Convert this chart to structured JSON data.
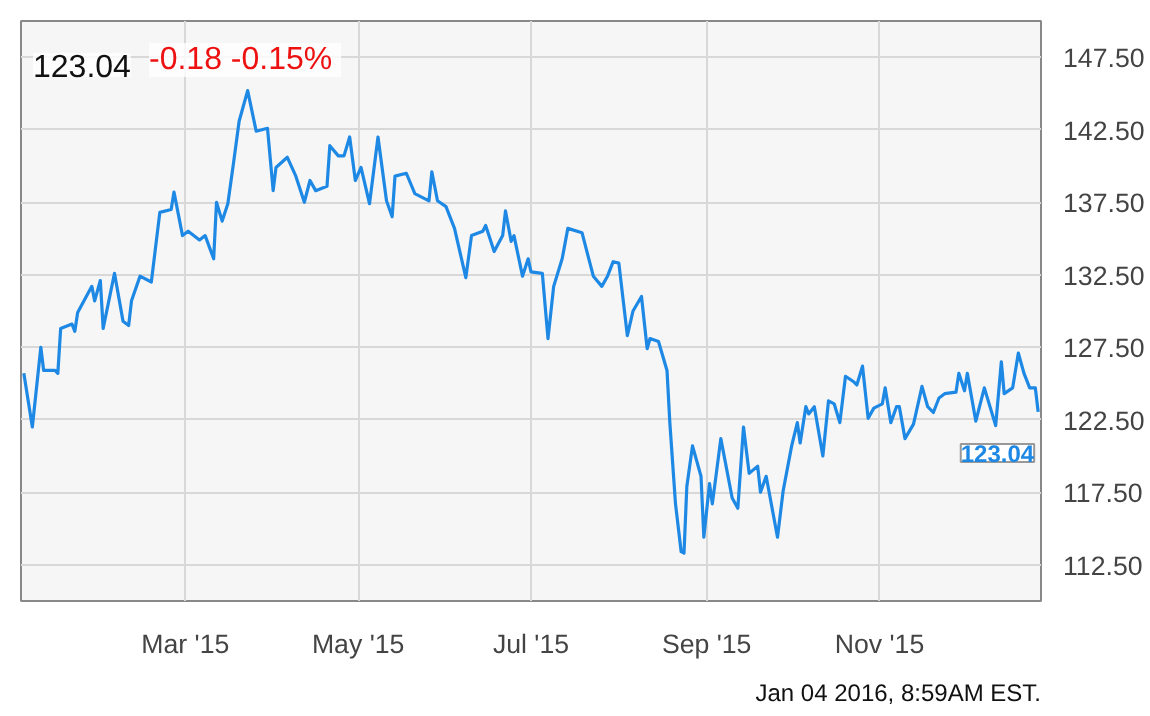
{
  "chart_data": {
    "type": "line",
    "title": "123.04",
    "subtitle": "-0.18  -0.15%",
    "x": [
      "2015-01-03",
      "2015-01-06",
      "2015-01-09",
      "2015-01-10",
      "2015-01-14",
      "2015-01-15",
      "2015-01-16",
      "2015-01-20",
      "2015-01-21",
      "2015-01-22",
      "2015-01-27",
      "2015-01-28",
      "2015-01-30",
      "2015-01-31",
      "2015-02-04",
      "2015-02-07",
      "2015-02-09",
      "2015-02-10",
      "2015-02-13",
      "2015-02-17",
      "2015-02-20",
      "2015-02-24",
      "2015-02-25",
      "2015-02-28",
      "2015-03-02",
      "2015-03-06",
      "2015-03-08",
      "2015-03-11",
      "2015-03-12",
      "2015-03-14",
      "2015-03-16",
      "2015-03-18",
      "2015-03-20",
      "2015-03-23",
      "2015-03-26",
      "2015-03-30",
      "2015-04-01",
      "2015-04-02",
      "2015-04-06",
      "2015-04-09",
      "2015-04-12",
      "2015-04-14",
      "2015-04-16",
      "2015-04-20",
      "2015-04-21",
      "2015-04-24",
      "2015-04-26",
      "2015-04-28",
      "2015-04-30",
      "2015-05-02",
      "2015-05-05",
      "2015-05-08",
      "2015-05-11",
      "2015-05-13",
      "2015-05-14",
      "2015-05-18",
      "2015-05-21",
      "2015-05-26",
      "2015-05-27",
      "2015-05-29",
      "2015-06-01",
      "2015-06-04",
      "2015-06-08",
      "2015-06-10",
      "2015-06-14",
      "2015-06-15",
      "2015-06-18",
      "2015-06-21",
      "2015-06-22",
      "2015-06-24",
      "2015-06-25",
      "2015-06-28",
      "2015-06-30",
      "2015-07-01",
      "2015-07-05",
      "2015-07-07",
      "2015-07-09",
      "2015-07-12",
      "2015-07-14",
      "2015-07-19",
      "2015-07-23",
      "2015-07-26",
      "2015-07-28",
      "2015-07-30",
      "2015-08-01",
      "2015-08-04",
      "2015-08-06",
      "2015-08-09",
      "2015-08-11",
      "2015-08-12",
      "2015-08-15",
      "2015-08-18",
      "2015-08-19",
      "2015-08-21",
      "2015-08-23",
      "2015-08-24",
      "2015-08-25",
      "2015-08-27",
      "2015-08-30",
      "2015-08-31",
      "2015-09-02",
      "2015-09-03",
      "2015-09-06",
      "2015-09-10",
      "2015-09-12",
      "2015-09-14",
      "2015-09-16",
      "2015-09-19",
      "2015-09-20",
      "2015-09-22",
      "2015-09-26",
      "2015-09-28",
      "2015-10-01",
      "2015-10-03",
      "2015-10-04",
      "2015-10-06",
      "2015-10-07",
      "2015-10-09",
      "2015-10-12",
      "2015-10-14",
      "2015-10-16",
      "2015-10-18",
      "2015-10-20",
      "2015-10-23",
      "2015-10-24",
      "2015-10-26",
      "2015-10-28",
      "2015-10-30",
      "2015-11-02",
      "2015-11-03",
      "2015-11-05",
      "2015-11-07",
      "2015-11-08",
      "2015-11-10",
      "2015-11-13",
      "2015-11-16",
      "2015-11-18",
      "2015-11-20",
      "2015-11-22",
      "2015-11-24",
      "2015-11-28",
      "2015-11-29",
      "2015-12-01",
      "2015-12-02",
      "2015-12-05",
      "2015-12-08",
      "2015-12-12",
      "2015-12-14",
      "2015-12-15",
      "2015-12-18",
      "2015-12-20",
      "2015-12-22",
      "2015-12-24",
      "2015-12-26",
      "2015-12-27"
    ],
    "series": [
      {
        "color": "#1e88e5",
        "values": [
          125.7,
          122.0,
          127.5,
          125.9,
          125.9,
          125.7,
          128.8,
          129.1,
          128.6,
          129.9,
          131.7,
          130.7,
          132.1,
          128.8,
          132.6,
          129.3,
          129.0,
          130.7,
          132.4,
          132.0,
          136.8,
          137.0,
          138.2,
          135.2,
          135.5,
          134.9,
          135.2,
          133.6,
          137.5,
          136.2,
          137.4,
          140.2,
          143.1,
          145.2,
          142.4,
          142.6,
          138.3,
          139.9,
          140.6,
          139.3,
          137.5,
          139.0,
          138.3,
          138.6,
          141.4,
          140.7,
          140.7,
          142.0,
          139.0,
          139.9,
          137.4,
          142.0,
          137.6,
          136.5,
          139.3,
          139.5,
          138.1,
          137.6,
          139.6,
          137.6,
          137.2,
          135.7,
          132.3,
          135.2,
          135.5,
          135.9,
          134.1,
          135.2,
          136.9,
          134.8,
          135.2,
          132.4,
          133.6,
          132.7,
          132.6,
          128.1,
          131.7,
          133.6,
          135.7,
          135.4,
          132.4,
          131.7,
          132.4,
          133.4,
          133.3,
          128.3,
          130.0,
          131.0,
          127.4,
          128.1,
          127.9,
          125.9,
          122.3,
          116.7,
          113.4,
          113.3,
          117.9,
          120.7,
          118.6,
          114.4,
          118.1,
          116.7,
          121.2,
          117.1,
          116.4,
          122.0,
          118.8,
          119.3,
          117.5,
          118.6,
          114.4,
          117.6,
          120.7,
          122.3,
          120.9,
          123.4,
          122.9,
          123.4,
          120.0,
          123.8,
          123.6,
          122.3,
          125.5,
          125.1,
          124.9,
          126.2,
          122.6,
          123.3,
          123.6,
          124.7,
          122.3,
          123.4,
          123.4,
          121.2,
          122.2,
          124.8,
          123.4,
          123.0,
          124.0,
          124.3,
          124.4,
          125.7,
          124.5,
          125.7,
          122.4,
          124.7,
          122.1,
          126.5,
          124.3,
          124.7,
          127.1,
          125.7,
          124.7,
          124.7,
          123.04
        ]
      }
    ],
    "xlim": [
      "2015-01-02",
      "2015-12-28"
    ],
    "xticks": [
      {
        "value": "2015-03-01",
        "label": "Mar '15"
      },
      {
        "value": "2015-05-01",
        "label": "May '15"
      },
      {
        "value": "2015-07-01",
        "label": "Jul '15"
      },
      {
        "value": "2015-09-01",
        "label": "Sep '15"
      },
      {
        "value": "2015-11-01",
        "label": "Nov '15"
      }
    ],
    "ylim": [
      110,
      150
    ],
    "yticks": [
      {
        "value": 112.5,
        "label": "112.50"
      },
      {
        "value": 117.5,
        "label": "117.50"
      },
      {
        "value": 122.5,
        "label": "122.50"
      },
      {
        "value": 127.5,
        "label": "127.50"
      },
      {
        "value": 132.5,
        "label": "132.50"
      },
      {
        "value": 137.5,
        "label": "137.50"
      },
      {
        "value": 142.5,
        "label": "142.50"
      },
      {
        "value": 147.5,
        "label": "147.50"
      }
    ],
    "grid": true,
    "annotations": [
      {
        "text": "123.04",
        "x": "2015-12-27",
        "y": 123.04
      },
      "Jan 04 2016, 8:59AM EST."
    ]
  }
}
